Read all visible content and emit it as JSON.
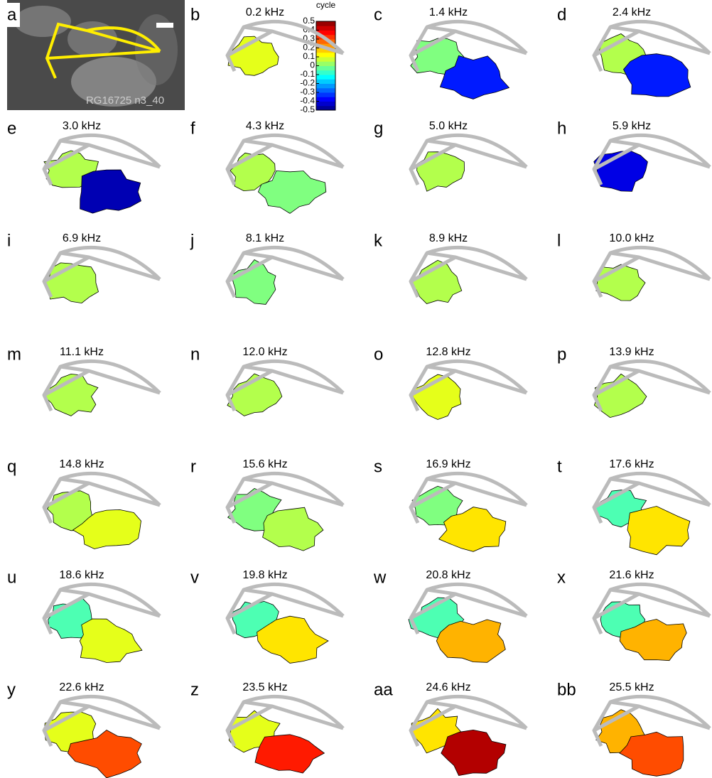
{
  "image_panel": {
    "label": "a",
    "caption": "RG16725 n3_40"
  },
  "colorbar": {
    "label": "cycle",
    "ticks": [
      0.5,
      0.4,
      0.3,
      0.2,
      0.1,
      0,
      -0.1,
      -0.2,
      -0.3,
      -0.4,
      -0.5
    ]
  },
  "panels": [
    {
      "label": "b",
      "title": "0.2 kHz",
      "phases": [
        0.1
      ]
    },
    {
      "label": "c",
      "title": "1.4 kHz",
      "phases": [
        0.0,
        -0.35
      ]
    },
    {
      "label": "d",
      "title": "2.4 kHz",
      "phases": [
        0.05,
        -0.35
      ]
    },
    {
      "label": "e",
      "title": "3.0 kHz",
      "phases": [
        0.05,
        -0.45
      ]
    },
    {
      "label": "f",
      "title": "4.3 kHz",
      "phases": [
        0.05,
        0.0
      ]
    },
    {
      "label": "g",
      "title": "5.0 kHz",
      "phases": [
        0.05
      ]
    },
    {
      "label": "h",
      "title": "5.9 kHz",
      "phases": [
        -0.4
      ]
    },
    {
      "label": "i",
      "title": "6.9 kHz",
      "phases": [
        0.05
      ]
    },
    {
      "label": "j",
      "title": "8.1 kHz",
      "phases": [
        0.0
      ]
    },
    {
      "label": "k",
      "title": "8.9 kHz",
      "phases": [
        0.05
      ]
    },
    {
      "label": "l",
      "title": "10.0 kHz",
      "phases": [
        0.05
      ]
    },
    {
      "label": "m",
      "title": "11.1 kHz",
      "phases": [
        0.05
      ]
    },
    {
      "label": "n",
      "title": "12.0 kHz",
      "phases": [
        0.05
      ]
    },
    {
      "label": "o",
      "title": "12.8 kHz",
      "phases": [
        0.1
      ]
    },
    {
      "label": "p",
      "title": "13.9 kHz",
      "phases": [
        0.05
      ]
    },
    {
      "label": "q",
      "title": "14.8 kHz",
      "phases": [
        0.05,
        0.1
      ]
    },
    {
      "label": "r",
      "title": "15.6 kHz",
      "phases": [
        0.0,
        0.05
      ]
    },
    {
      "label": "s",
      "title": "16.9 kHz",
      "phases": [
        0.0,
        0.15
      ]
    },
    {
      "label": "t",
      "title": "17.6 kHz",
      "phases": [
        -0.05,
        0.15
      ]
    },
    {
      "label": "u",
      "title": "18.6 kHz",
      "phases": [
        -0.05,
        0.1
      ]
    },
    {
      "label": "v",
      "title": "19.8 kHz",
      "phases": [
        -0.05,
        0.15
      ]
    },
    {
      "label": "w",
      "title": "20.8 kHz",
      "phases": [
        -0.05,
        0.2
      ]
    },
    {
      "label": "x",
      "title": "21.6 kHz",
      "phases": [
        -0.05,
        0.2
      ]
    },
    {
      "label": "y",
      "title": "22.6 kHz",
      "phases": [
        0.1,
        0.3
      ]
    },
    {
      "label": "z",
      "title": "23.5 kHz",
      "phases": [
        0.1,
        0.35
      ]
    },
    {
      "label": "aa",
      "title": "24.6 kHz",
      "phases": [
        0.15,
        0.45
      ]
    },
    {
      "label": "bb",
      "title": "25.5 kHz",
      "phases": [
        0.2,
        0.3
      ]
    }
  ]
}
